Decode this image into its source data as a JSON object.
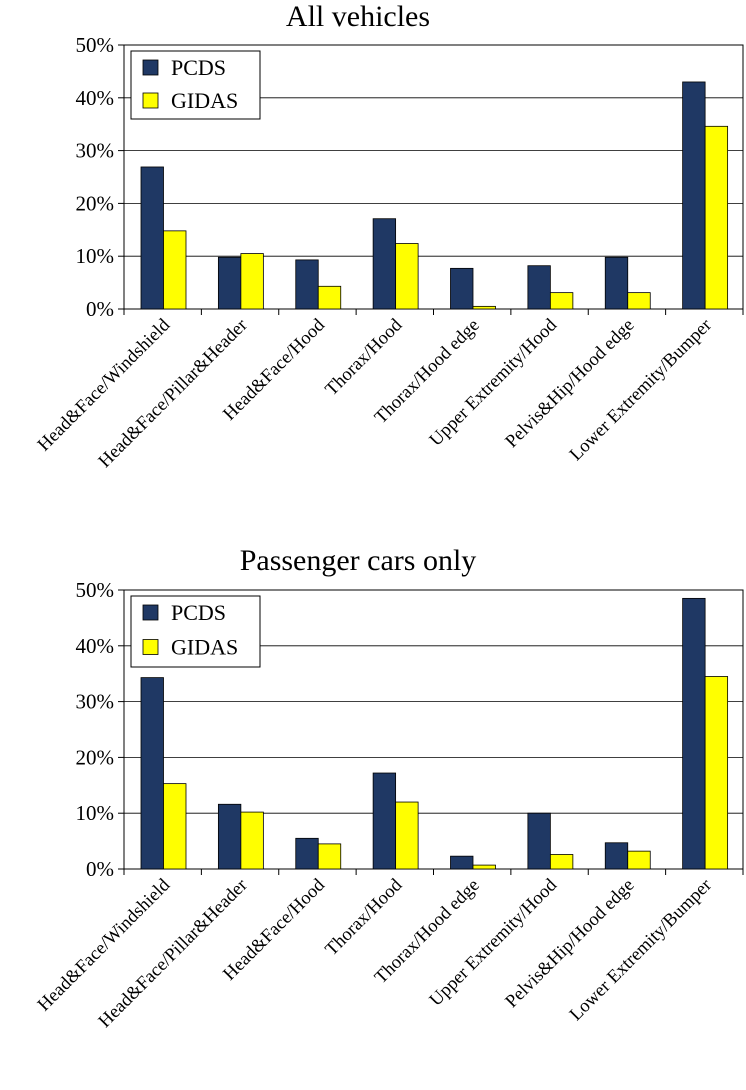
{
  "chart_data": [
    {
      "type": "bar",
      "title": "All vehicles",
      "xlabel": "",
      "ylabel": "",
      "ylim": [
        0,
        50
      ],
      "yticks": [
        "0%",
        "10%",
        "20%",
        "30%",
        "40%",
        "50%"
      ],
      "ytick_values": [
        0,
        10,
        20,
        30,
        40,
        50
      ],
      "legend_position": "top-left",
      "categories": [
        "Head&Face/Windshield",
        "Head&Face/Pillar&Header",
        "Head&Face/Hood",
        "Thorax/Hood",
        "Thorax/Hood edge",
        "Upper Extremity/Hood",
        "Pelvis&Hip/Hood edge",
        "Lower Extremity/Bumper"
      ],
      "series": [
        {
          "name": "PCDS",
          "color": "#1f3864",
          "values": [
            26.9,
            9.8,
            9.3,
            17.1,
            7.7,
            8.2,
            9.8,
            43.0
          ]
        },
        {
          "name": "GIDAS",
          "color": "#ffff00",
          "values": [
            14.8,
            10.5,
            4.3,
            12.4,
            0.5,
            3.1,
            3.1,
            34.6
          ]
        }
      ]
    },
    {
      "type": "bar",
      "title": "Passenger cars only",
      "xlabel": "",
      "ylabel": "",
      "ylim": [
        0,
        50
      ],
      "yticks": [
        "0%",
        "10%",
        "20%",
        "30%",
        "40%",
        "50%"
      ],
      "ytick_values": [
        0,
        10,
        20,
        30,
        40,
        50
      ],
      "legend_position": "top-left",
      "categories": [
        "Head&Face/Windshield",
        "Head&Face/Pillar&Header",
        "Head&Face/Hood",
        "Thorax/Hood",
        "Thorax/Hood edge",
        "Upper Extremity/Hood",
        "Pelvis&Hip/Hood edge",
        "Lower Extremity/Bumper"
      ],
      "series": [
        {
          "name": "PCDS",
          "color": "#1f3864",
          "values": [
            34.3,
            11.6,
            5.5,
            17.2,
            2.3,
            10.0,
            4.7,
            48.5
          ]
        },
        {
          "name": "GIDAS",
          "color": "#ffff00",
          "values": [
            15.3,
            10.2,
            4.5,
            12.0,
            0.7,
            2.6,
            3.2,
            34.5
          ]
        }
      ]
    }
  ]
}
